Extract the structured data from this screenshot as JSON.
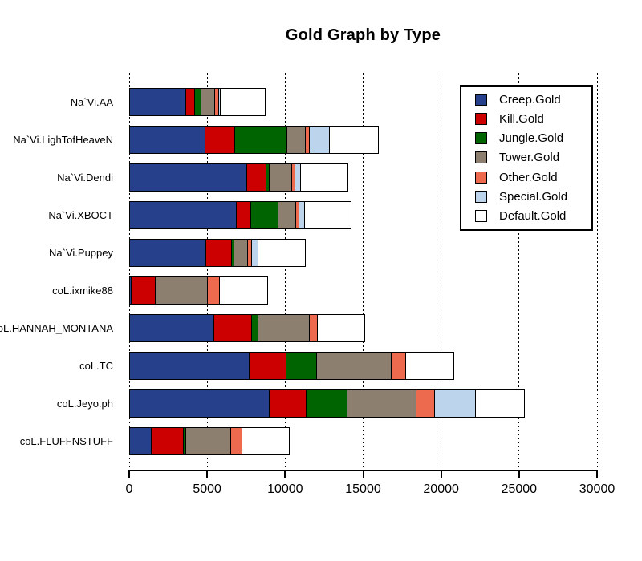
{
  "chart_data": {
    "type": "bar",
    "orientation": "horizontal-stacked",
    "title": "Gold Graph by Type",
    "xlabel": "",
    "ylabel": "",
    "xlim": [
      0,
      30000
    ],
    "grid": "dotted-vertical-at-ticks",
    "legend_position": "top-right-boxed",
    "x_ticks": [
      0,
      5000,
      10000,
      15000,
      20000,
      25000,
      30000
    ],
    "x_tick_labels": [
      "0",
      "5000",
      "10000",
      "15000",
      "20000",
      "25000",
      "30000"
    ],
    "categories": [
      "Na`Vi.AA",
      "Na`Vi.LighTofHeaveN",
      "Na`Vi.Dendi",
      "Na`Vi.XBOCT",
      "Na`Vi.Puppey",
      "coL.ixmike88",
      "coL.HANNAH_MONTANA",
      "coL.TC",
      "coL.Jeyo.ph",
      "coL.FLUFFNSTUFF"
    ],
    "series": [
      {
        "name": "Creep.Gold",
        "color": "#27408B",
        "values": [
          3700,
          4900,
          7600,
          6900,
          4950,
          200,
          5500,
          7750,
          9050,
          1450
        ]
      },
      {
        "name": "Kill.Gold",
        "color": "#CC0000",
        "values": [
          600,
          2000,
          1300,
          1000,
          1750,
          1600,
          2500,
          2450,
          2450,
          2150
        ]
      },
      {
        "name": "Jungle.Gold",
        "color": "#006400",
        "values": [
          500,
          3400,
          300,
          1850,
          200,
          0,
          450,
          2000,
          2700,
          250
        ]
      },
      {
        "name": "Tower.Gold",
        "color": "#8C7F6F",
        "values": [
          950,
          1300,
          1500,
          1200,
          950,
          3450,
          3400,
          4900,
          4500,
          2950
        ]
      },
      {
        "name": "Other.Gold",
        "color": "#ED6A4F",
        "values": [
          350,
          300,
          300,
          275,
          350,
          800,
          575,
          1000,
          1250,
          800
        ]
      },
      {
        "name": "Special.Gold",
        "color": "#BCD4EC",
        "values": [
          175,
          1400,
          400,
          450,
          500,
          0,
          0,
          0,
          2700,
          0
        ]
      },
      {
        "name": "Default.Gold",
        "color": "#FFFFFF",
        "values": [
          2950,
          3150,
          3100,
          3050,
          3100,
          3150,
          3100,
          3150,
          3200,
          3100
        ]
      }
    ],
    "totals_approx": [
      9225,
      16450,
      14500,
      14725,
      11800,
      9200,
      15525,
      21250,
      25850,
      10700
    ]
  },
  "colors": {
    "axis": "#000000",
    "grid": "#000000",
    "background": "#ffffff",
    "bar_border": "#000000"
  }
}
